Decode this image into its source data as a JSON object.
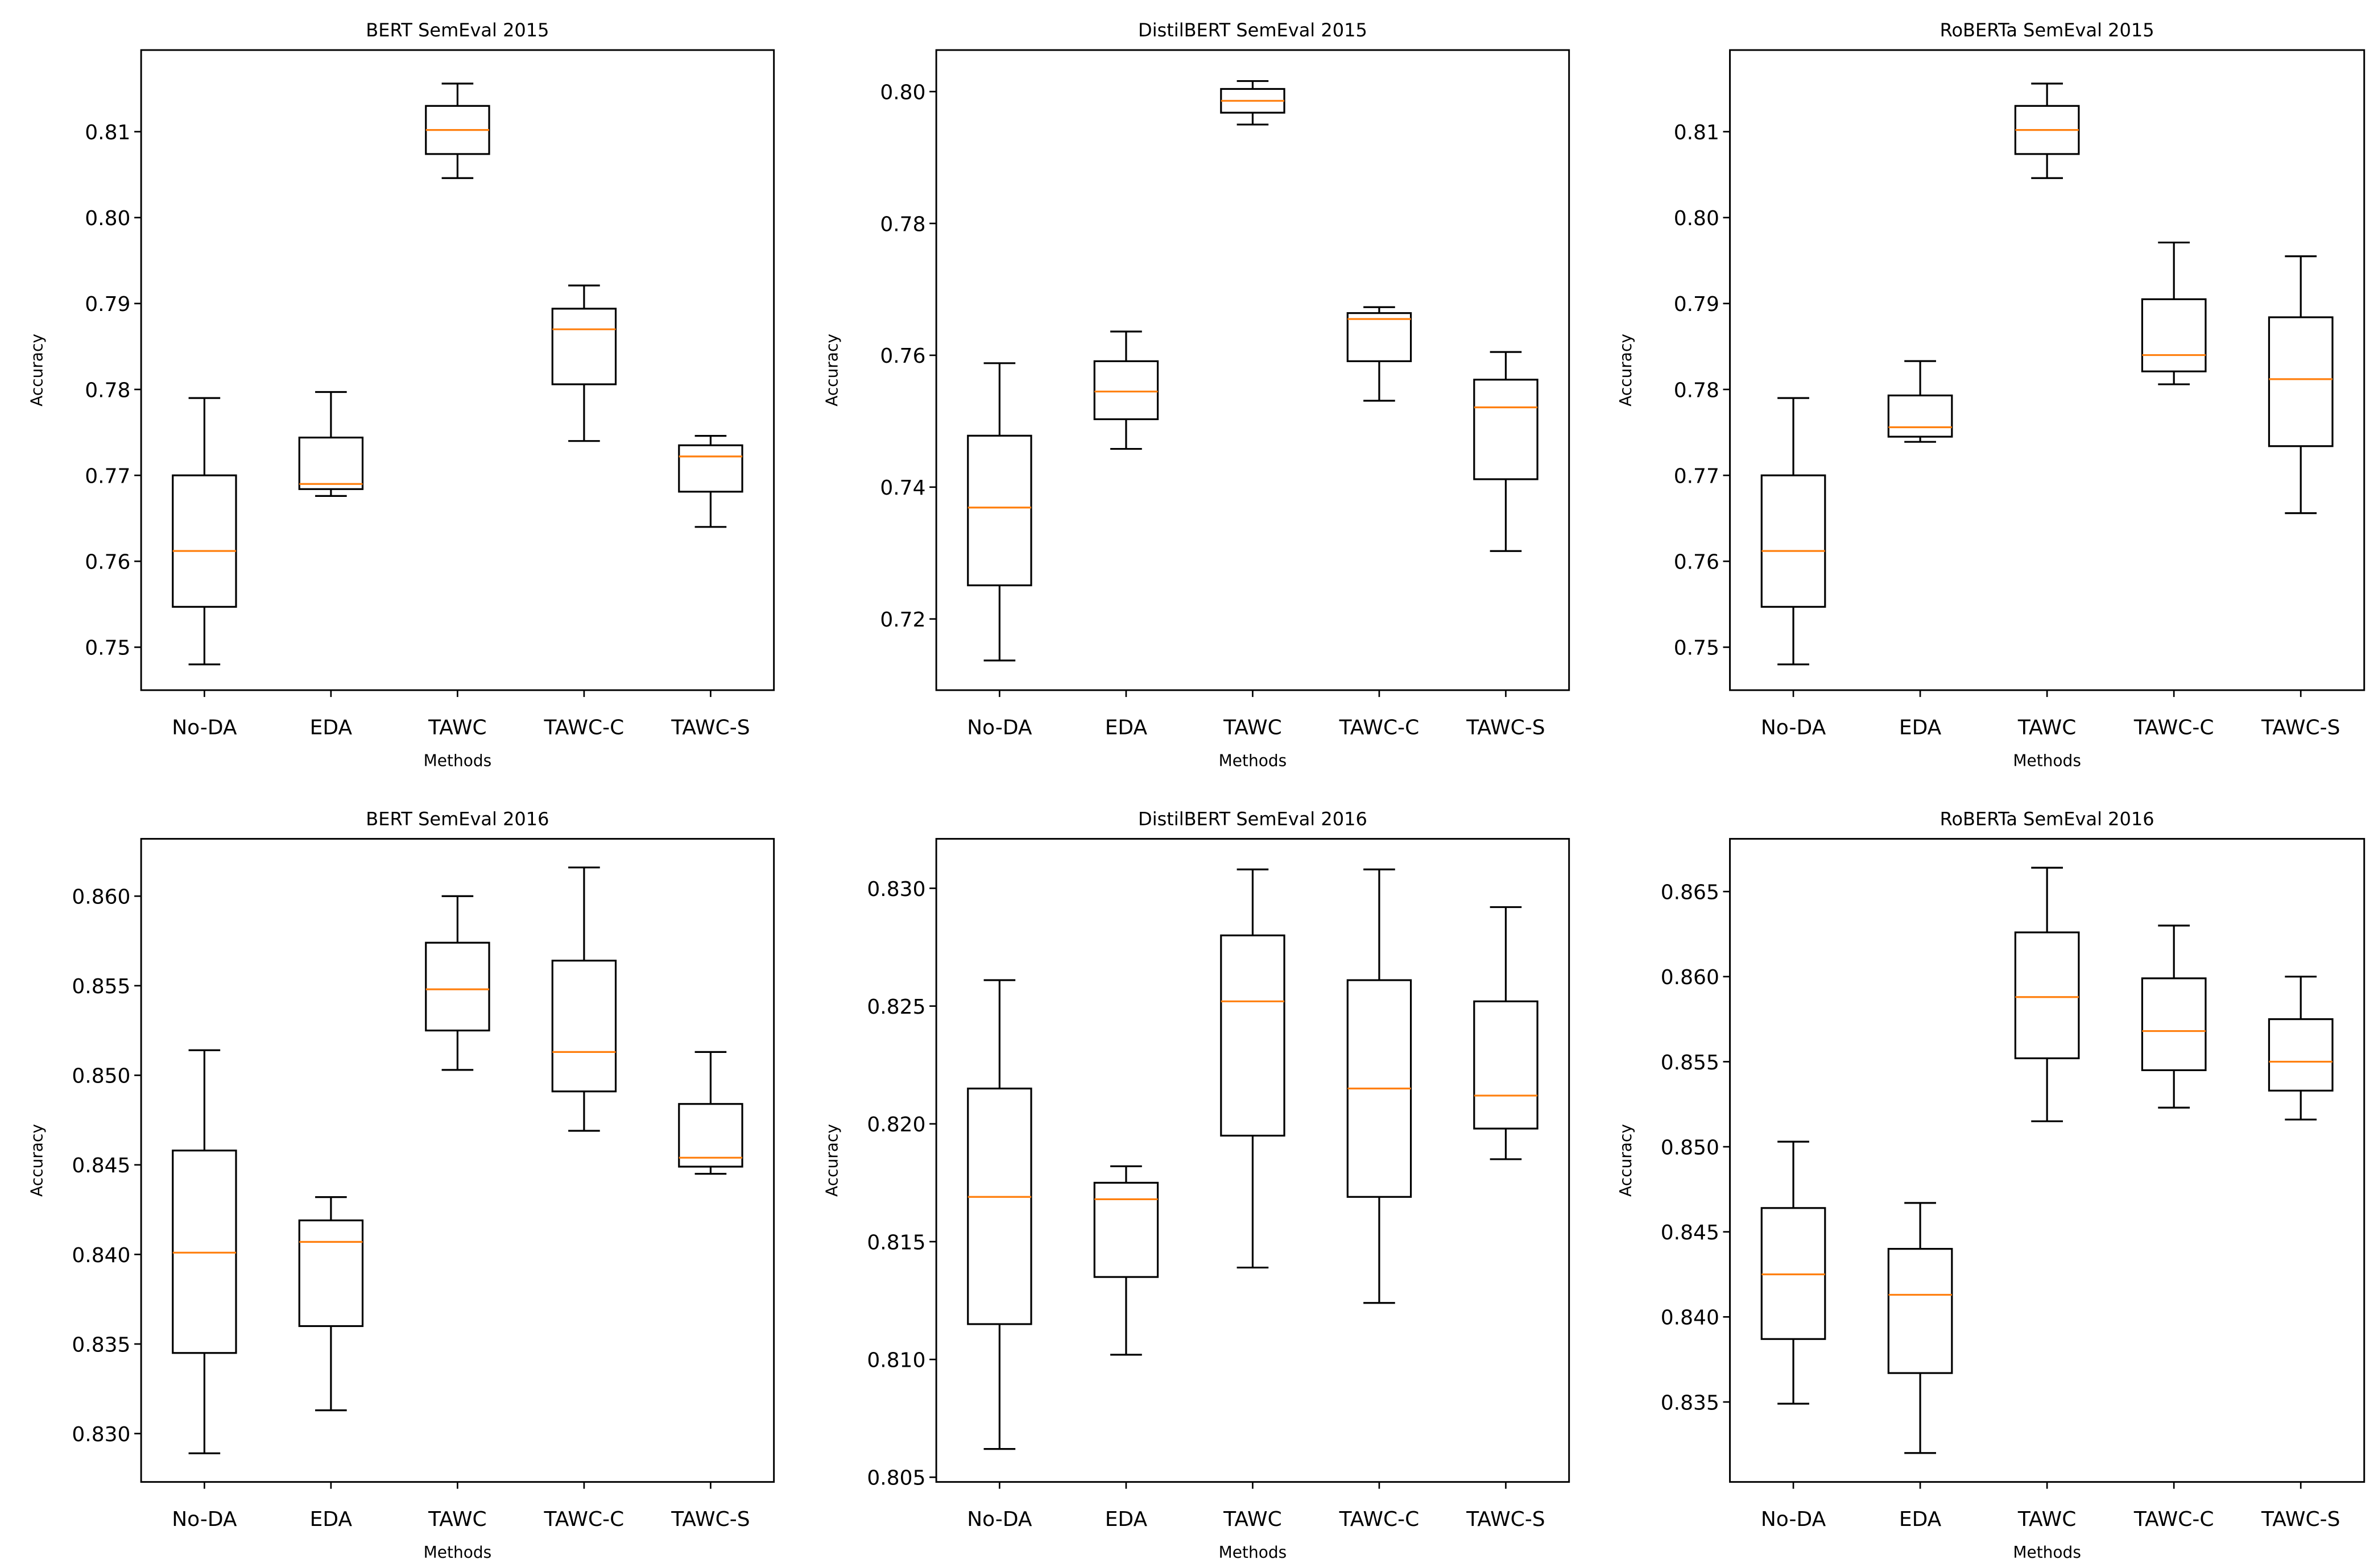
{
  "chart_data": [
    {
      "type": "boxplot",
      "title": "BERT SemEval 2015",
      "xlabel": "Methods",
      "ylabel": "Accuracy",
      "categories": [
        "No-DA",
        "EDA",
        "TAWC",
        "TAWC-C",
        "TAWC-S"
      ],
      "ylim": [
        0.745,
        0.8195
      ],
      "yticks": [
        0.75,
        0.76,
        0.77,
        0.78,
        0.79,
        0.8,
        0.81
      ],
      "ytick_labels": [
        "0.75",
        "0.76",
        "0.77",
        "0.78",
        "0.79",
        "0.80",
        "0.81"
      ],
      "boxes": [
        {
          "whislo": 0.748,
          "q1": 0.7547,
          "med": 0.7612,
          "q3": 0.77,
          "whishi": 0.779
        },
        {
          "whislo": 0.7676,
          "q1": 0.7684,
          "med": 0.769,
          "q3": 0.7744,
          "whishi": 0.7797
        },
        {
          "whislo": 0.8046,
          "q1": 0.8074,
          "med": 0.8102,
          "q3": 0.813,
          "whishi": 0.8156
        },
        {
          "whislo": 0.774,
          "q1": 0.7806,
          "med": 0.787,
          "q3": 0.7894,
          "whishi": 0.7921
        },
        {
          "whislo": 0.764,
          "q1": 0.7681,
          "med": 0.7722,
          "q3": 0.7735,
          "whishi": 0.7746
        }
      ]
    },
    {
      "type": "boxplot",
      "title": "DistilBERT SemEval 2015",
      "xlabel": "Methods",
      "ylabel": "Accuracy",
      "categories": [
        "No-DA",
        "EDA",
        "TAWC",
        "TAWC-C",
        "TAWC-S"
      ],
      "ylim": [
        0.7092,
        0.8063
      ],
      "yticks": [
        0.72,
        0.74,
        0.76,
        0.78,
        0.8
      ],
      "ytick_labels": [
        "0.72",
        "0.74",
        "0.76",
        "0.78",
        "0.80"
      ],
      "boxes": [
        {
          "whislo": 0.7137,
          "q1": 0.7251,
          "med": 0.7369,
          "q3": 0.7478,
          "whishi": 0.7588
        },
        {
          "whislo": 0.7458,
          "q1": 0.7503,
          "med": 0.7545,
          "q3": 0.7591,
          "whishi": 0.7636
        },
        {
          "whislo": 0.795,
          "q1": 0.7968,
          "med": 0.7986,
          "q3": 0.8004,
          "whishi": 0.8016
        },
        {
          "whislo": 0.7531,
          "q1": 0.7591,
          "med": 0.7655,
          "q3": 0.7664,
          "whishi": 0.7673
        },
        {
          "whislo": 0.7303,
          "q1": 0.7412,
          "med": 0.7521,
          "q3": 0.7563,
          "whishi": 0.7605
        }
      ]
    },
    {
      "type": "boxplot",
      "title": "RoBERTa SemEval 2015",
      "xlabel": "Methods",
      "ylabel": "Accuracy",
      "categories": [
        "No-DA",
        "EDA",
        "TAWC",
        "TAWC-C",
        "TAWC-S"
      ],
      "ylim": [
        0.745,
        0.8195
      ],
      "yticks": [
        0.75,
        0.76,
        0.77,
        0.78,
        0.79,
        0.8,
        0.81
      ],
      "ytick_labels": [
        "0.75",
        "0.76",
        "0.77",
        "0.78",
        "0.79",
        "0.80",
        "0.81"
      ],
      "boxes": [
        {
          "whislo": 0.748,
          "q1": 0.7547,
          "med": 0.7612,
          "q3": 0.77,
          "whishi": 0.779
        },
        {
          "whislo": 0.7739,
          "q1": 0.7745,
          "med": 0.7756,
          "q3": 0.7793,
          "whishi": 0.7833
        },
        {
          "whislo": 0.8046,
          "q1": 0.8074,
          "med": 0.8102,
          "q3": 0.813,
          "whishi": 0.8156
        },
        {
          "whislo": 0.7806,
          "q1": 0.7821,
          "med": 0.784,
          "q3": 0.7905,
          "whishi": 0.7971
        },
        {
          "whislo": 0.7656,
          "q1": 0.7734,
          "med": 0.7812,
          "q3": 0.7884,
          "whishi": 0.7955
        }
      ]
    },
    {
      "type": "boxplot",
      "title": "BERT SemEval 2016",
      "xlabel": "Methods",
      "ylabel": "Accuracy",
      "categories": [
        "No-DA",
        "EDA",
        "TAWC",
        "TAWC-C",
        "TAWC-S"
      ],
      "ylim": [
        0.8273,
        0.8632
      ],
      "yticks": [
        0.83,
        0.835,
        0.84,
        0.845,
        0.85,
        0.855,
        0.86
      ],
      "ytick_labels": [
        "0.830",
        "0.835",
        "0.840",
        "0.845",
        "0.850",
        "0.855",
        "0.860"
      ],
      "boxes": [
        {
          "whislo": 0.8289,
          "q1": 0.8345,
          "med": 0.8401,
          "q3": 0.8458,
          "whishi": 0.8514
        },
        {
          "whislo": 0.8313,
          "q1": 0.836,
          "med": 0.8407,
          "q3": 0.8419,
          "whishi": 0.8432
        },
        {
          "whislo": 0.8503,
          "q1": 0.8525,
          "med": 0.8548,
          "q3": 0.8574,
          "whishi": 0.86
        },
        {
          "whislo": 0.8469,
          "q1": 0.8491,
          "med": 0.8513,
          "q3": 0.8564,
          "whishi": 0.8616
        },
        {
          "whislo": 0.8445,
          "q1": 0.8449,
          "med": 0.8454,
          "q3": 0.8484,
          "whishi": 0.8513
        }
      ]
    },
    {
      "type": "boxplot",
      "title": "DistilBERT SemEval 2016",
      "xlabel": "Methods",
      "ylabel": "Accuracy",
      "categories": [
        "No-DA",
        "EDA",
        "TAWC",
        "TAWC-C",
        "TAWC-S"
      ],
      "ylim": [
        0.8048,
        0.8321
      ],
      "yticks": [
        0.805,
        0.81,
        0.815,
        0.82,
        0.825,
        0.83
      ],
      "ytick_labels": [
        "0.805",
        "0.810",
        "0.815",
        "0.820",
        "0.825",
        "0.830"
      ],
      "boxes": [
        {
          "whislo": 0.8062,
          "q1": 0.8115,
          "med": 0.8169,
          "q3": 0.8215,
          "whishi": 0.8261
        },
        {
          "whislo": 0.8102,
          "q1": 0.8135,
          "med": 0.8168,
          "q3": 0.8175,
          "whishi": 0.8182
        },
        {
          "whislo": 0.8139,
          "q1": 0.8195,
          "med": 0.8252,
          "q3": 0.828,
          "whishi": 0.8308
        },
        {
          "whislo": 0.8124,
          "q1": 0.8169,
          "med": 0.8215,
          "q3": 0.8261,
          "whishi": 0.8308
        },
        {
          "whislo": 0.8185,
          "q1": 0.8198,
          "med": 0.8212,
          "q3": 0.8252,
          "whishi": 0.8292
        }
      ]
    },
    {
      "type": "boxplot",
      "title": "RoBERTa SemEval 2016",
      "xlabel": "Methods",
      "ylabel": "Accuracy",
      "categories": [
        "No-DA",
        "EDA",
        "TAWC",
        "TAWC-C",
        "TAWC-S"
      ],
      "ylim": [
        0.8303,
        0.8681
      ],
      "yticks": [
        0.835,
        0.84,
        0.845,
        0.85,
        0.855,
        0.86,
        0.865
      ],
      "ytick_labels": [
        "0.835",
        "0.840",
        "0.845",
        "0.850",
        "0.855",
        "0.860",
        "0.865"
      ],
      "boxes": [
        {
          "whislo": 0.8349,
          "q1": 0.8387,
          "med": 0.8425,
          "q3": 0.8464,
          "whishi": 0.8503
        },
        {
          "whislo": 0.832,
          "q1": 0.8367,
          "med": 0.8413,
          "q3": 0.844,
          "whishi": 0.8467
        },
        {
          "whislo": 0.8515,
          "q1": 0.8552,
          "med": 0.8588,
          "q3": 0.8626,
          "whishi": 0.8664
        },
        {
          "whislo": 0.8523,
          "q1": 0.8545,
          "med": 0.8568,
          "q3": 0.8599,
          "whishi": 0.863
        },
        {
          "whislo": 0.8516,
          "q1": 0.8533,
          "med": 0.855,
          "q3": 0.8575,
          "whishi": 0.86
        }
      ]
    }
  ],
  "colors": {
    "axes": "#000000",
    "box": "#000000",
    "median": "#ff7f0e",
    "background": "#ffffff"
  }
}
